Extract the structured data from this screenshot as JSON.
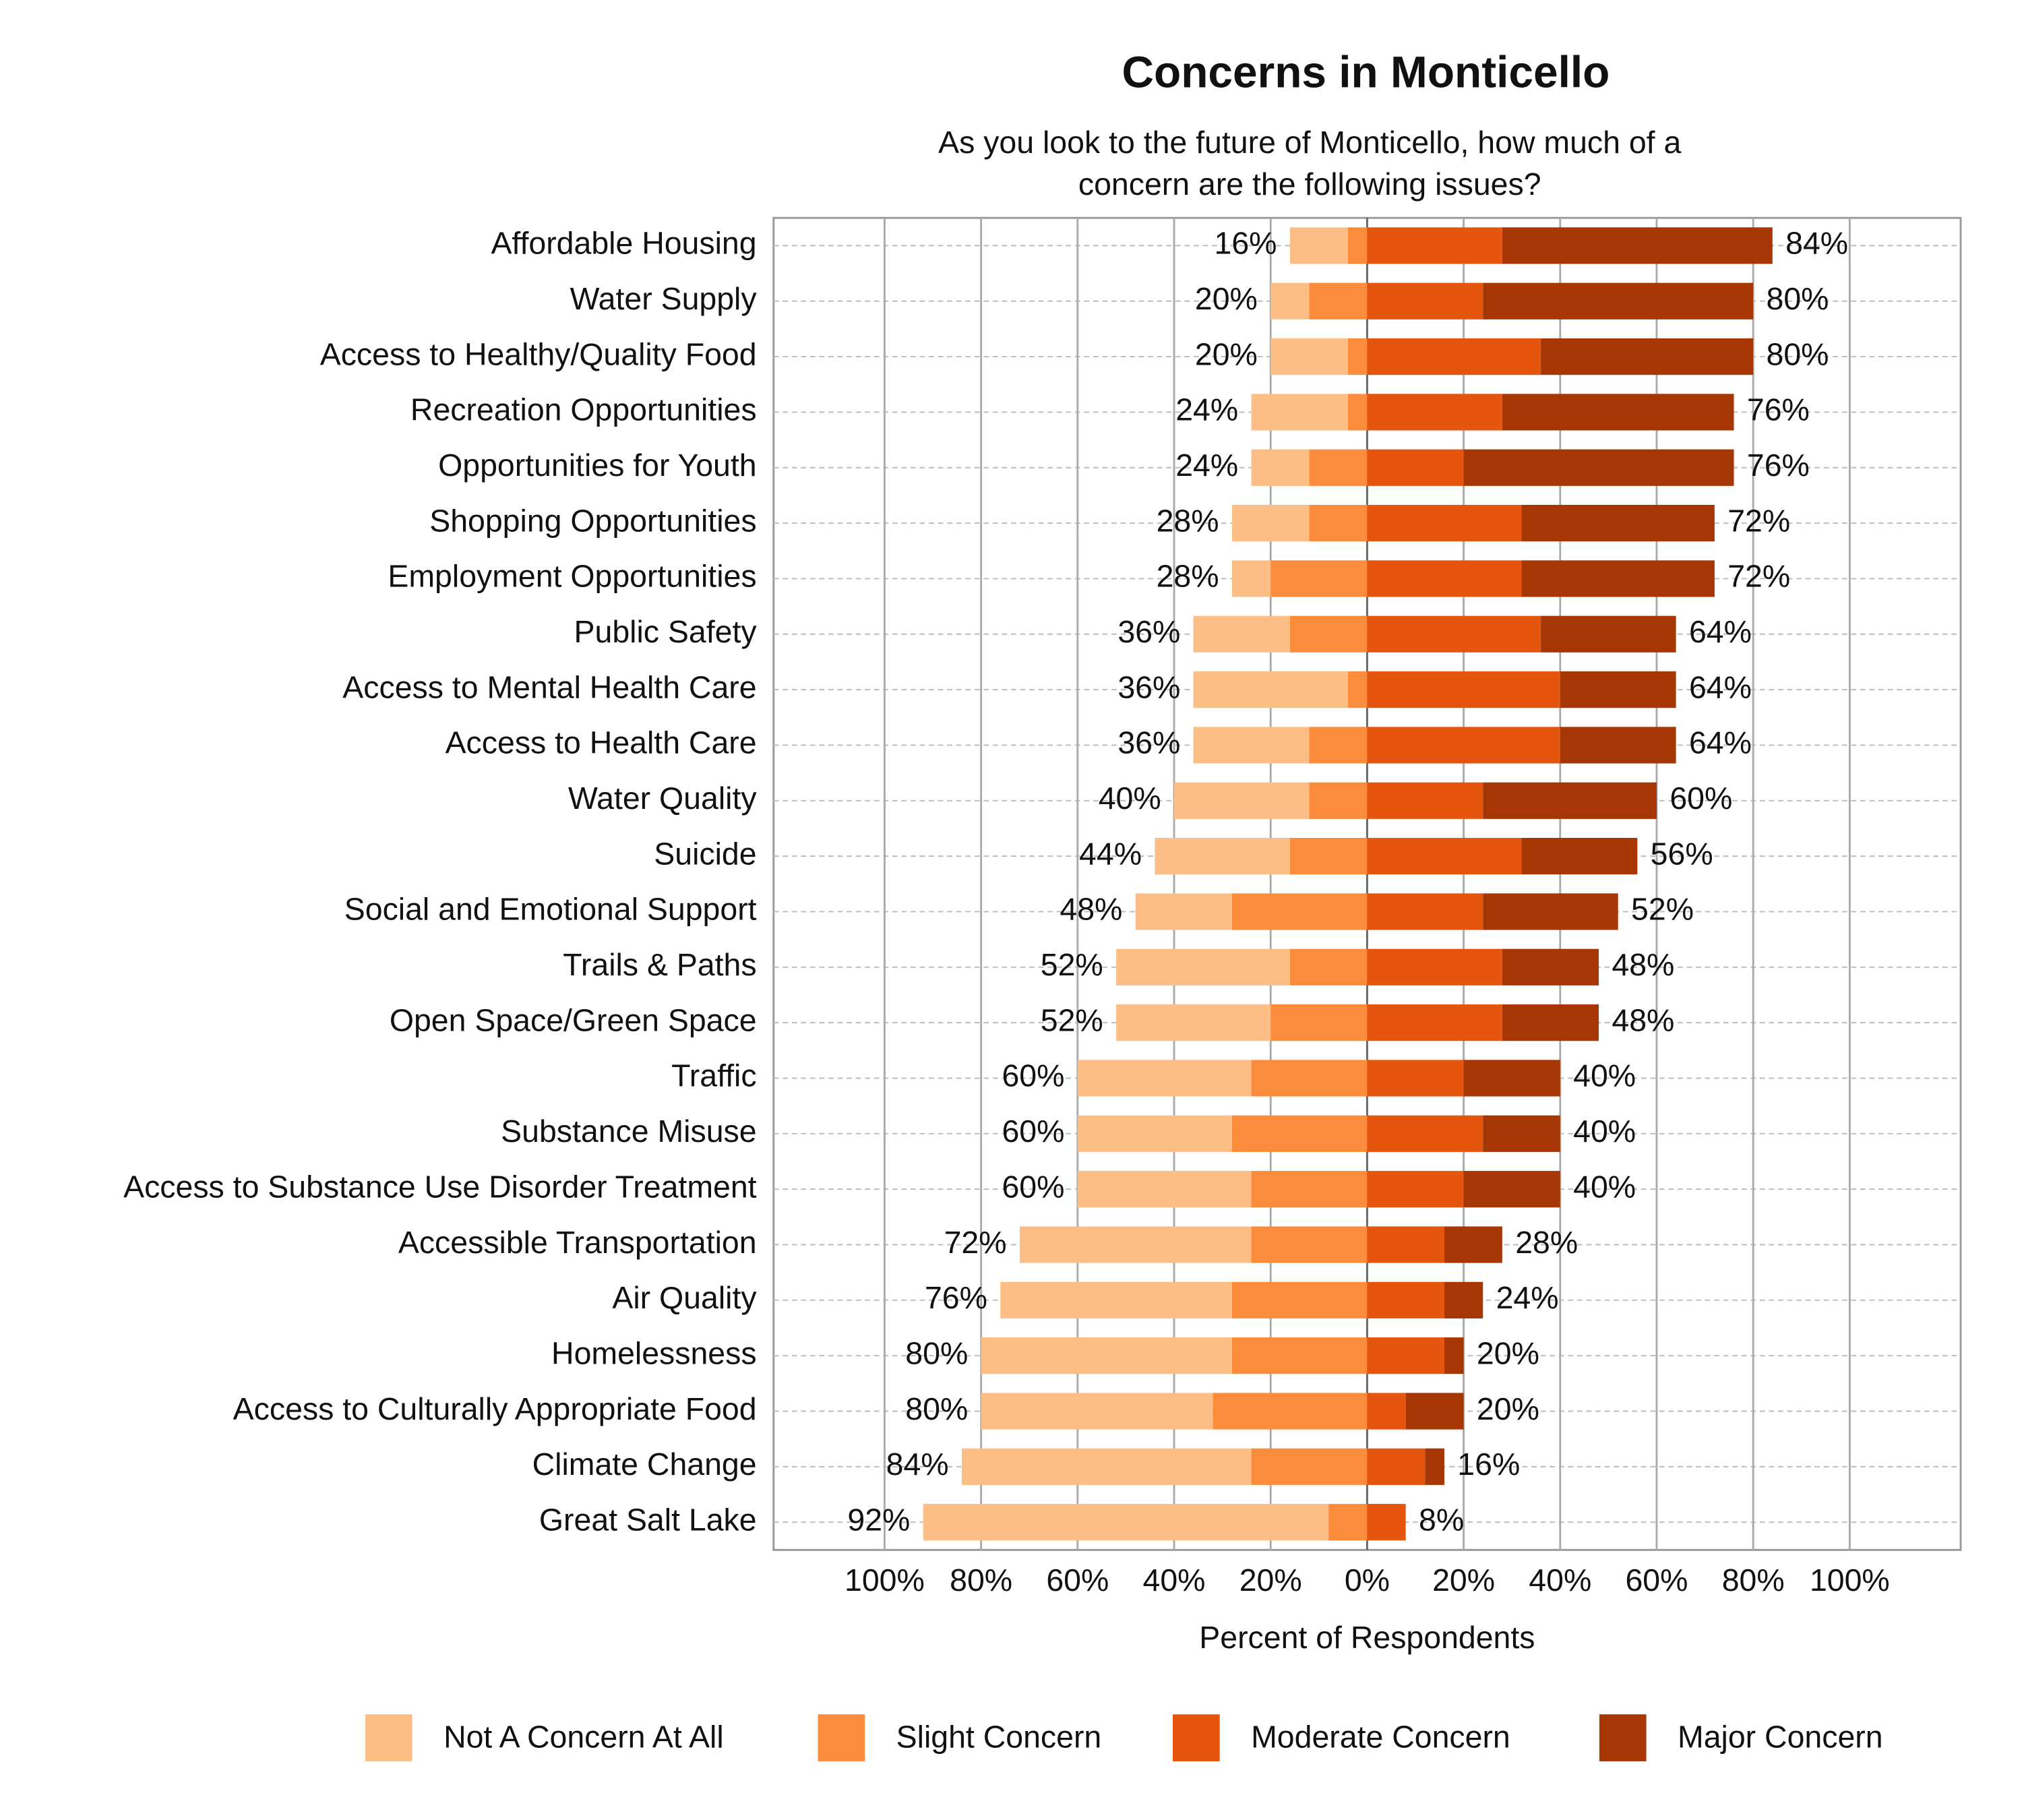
{
  "chart_data": {
    "type": "diverging_bar",
    "title": "Concerns in Monticello",
    "subtitle": [
      "As you look to the future of Monticello, how much of a",
      "concern are the following issues?"
    ],
    "x_label": "Percent of Respondents",
    "categories": [
      "Affordable Housing",
      "Water Supply",
      "Access to Healthy/Quality Food",
      "Recreation Opportunities",
      "Opportunities for Youth",
      "Shopping Opportunities",
      "Employment Opportunities",
      "Public Safety",
      "Access to Mental Health Care",
      "Access to Health Care",
      "Water Quality",
      "Suicide",
      "Social and Emotional Support",
      "Trails & Paths",
      "Open Space/Green Space",
      "Traffic",
      "Substance Misuse",
      "Access to Substance Use Disorder Treatment",
      "Accessible Transportation",
      "Air Quality",
      "Homelessness",
      "Access to Culturally Appropriate Food",
      "Climate Change",
      "Great Salt Lake"
    ],
    "series": [
      {
        "name": "Not A Concern At All",
        "color": "#fdbe85",
        "side": "left",
        "values": [
          12,
          8,
          16,
          20,
          12,
          16,
          8,
          20,
          32,
          24,
          28,
          28,
          20,
          36,
          32,
          36,
          32,
          36,
          48,
          48,
          52,
          48,
          60,
          84
        ]
      },
      {
        "name": "Slight Concern",
        "color": "#fb8c3c",
        "side": "left",
        "values": [
          4,
          12,
          4,
          4,
          12,
          12,
          20,
          16,
          4,
          12,
          12,
          16,
          28,
          16,
          20,
          24,
          28,
          24,
          24,
          28,
          28,
          32,
          24,
          8
        ]
      },
      {
        "name": "Moderate Concern",
        "color": "#e6550d",
        "side": "right",
        "values": [
          28,
          24,
          36,
          28,
          20,
          32,
          32,
          36,
          40,
          40,
          24,
          32,
          24,
          28,
          28,
          20,
          24,
          20,
          16,
          16,
          16,
          8,
          12,
          8
        ]
      },
      {
        "name": "Major Concern",
        "color": "#a63603",
        "side": "right",
        "values": [
          56,
          56,
          44,
          48,
          56,
          40,
          40,
          28,
          24,
          24,
          36,
          24,
          28,
          20,
          20,
          20,
          16,
          20,
          12,
          8,
          4,
          12,
          4,
          0
        ]
      }
    ],
    "left_totals": {
      "values": [
        16,
        20,
        20,
        24,
        24,
        28,
        28,
        36,
        36,
        36,
        40,
        44,
        48,
        52,
        52,
        60,
        60,
        60,
        72,
        76,
        80,
        80,
        84,
        92
      ],
      "value_labels": [
        "16%",
        "20%",
        "20%",
        "24%",
        "24%",
        "28%",
        "28%",
        "36%",
        "36%",
        "36%",
        "40%",
        "44%",
        "48%",
        "52%",
        "52%",
        "60%",
        "60%",
        "60%",
        "72%",
        "76%",
        "80%",
        "80%",
        "84%",
        "92%"
      ]
    },
    "right_totals": {
      "values": [
        84,
        80,
        80,
        76,
        76,
        72,
        72,
        64,
        64,
        64,
        60,
        56,
        52,
        48,
        48,
        40,
        40,
        40,
        28,
        24,
        20,
        20,
        16,
        8
      ],
      "value_labels": [
        "84%",
        "80%",
        "80%",
        "76%",
        "76%",
        "72%",
        "72%",
        "64%",
        "64%",
        "64%",
        "60%",
        "56%",
        "52%",
        "48%",
        "48%",
        "40%",
        "40%",
        "40%",
        "28%",
        "24%",
        "20%",
        "20%",
        "16%",
        "8%"
      ]
    },
    "xlim": [
      -123,
      123
    ],
    "xticks": [
      {
        "value": -100,
        "label": "100%"
      },
      {
        "value": -80,
        "label": "80%"
      },
      {
        "value": -60,
        "label": "60%"
      },
      {
        "value": -40,
        "label": "40%"
      },
      {
        "value": -20,
        "label": "20%"
      },
      {
        "value": 0,
        "label": "0%"
      },
      {
        "value": 20,
        "label": "20%"
      },
      {
        "value": 40,
        "label": "40%"
      },
      {
        "value": 60,
        "label": "60%"
      },
      {
        "value": 80,
        "label": "80%"
      },
      {
        "value": 100,
        "label": "100%"
      }
    ],
    "grid": true,
    "legend": "bottom"
  }
}
